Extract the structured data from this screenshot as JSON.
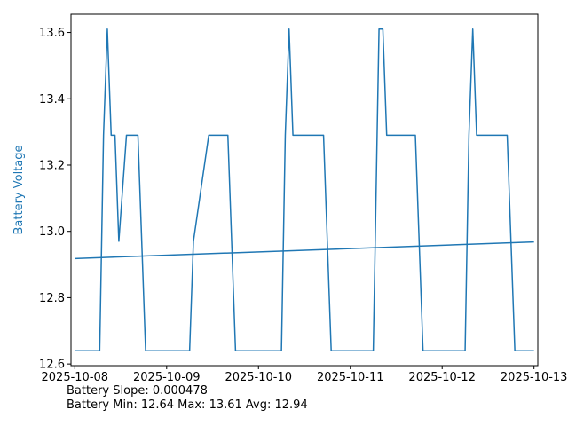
{
  "chart_data": {
    "type": "line",
    "title": "",
    "xlabel": "",
    "ylabel": "Battery Voltage",
    "ylim": [
      12.595,
      13.655
    ],
    "xlim": [
      "2025-10-07 23:00",
      "2025-10-13 01:00"
    ],
    "yticks": [
      "12.6",
      "12.8",
      "13.0",
      "13.2",
      "13.4",
      "13.6"
    ],
    "xticks": [
      "2025-10-08",
      "2025-10-09",
      "2025-10-10",
      "2025-10-11",
      "2025-10-12",
      "2025-10-13"
    ],
    "grid": false,
    "line_color": "#1f77b4",
    "series": [
      {
        "values": [
          [
            "2025-10-08 00:00",
            12.64
          ],
          [
            "2025-10-08 06:30",
            12.64
          ],
          [
            "2025-10-08 07:30",
            13.29
          ],
          [
            "2025-10-08 08:30",
            13.61
          ],
          [
            "2025-10-08 09:30",
            13.29
          ],
          [
            "2025-10-08 10:30",
            13.29
          ],
          [
            "2025-10-08 11:30",
            12.97
          ],
          [
            "2025-10-08 13:30",
            13.29
          ],
          [
            "2025-10-08 16:30",
            13.29
          ],
          [
            "2025-10-08 18:30",
            12.64
          ],
          [
            "2025-10-09 06:00",
            12.64
          ],
          [
            "2025-10-09 07:00",
            12.97
          ],
          [
            "2025-10-09 11:00",
            13.29
          ],
          [
            "2025-10-09 16:00",
            13.29
          ],
          [
            "2025-10-09 18:00",
            12.64
          ],
          [
            "2025-10-10 06:00",
            12.64
          ],
          [
            "2025-10-10 07:00",
            13.29
          ],
          [
            "2025-10-10 08:00",
            13.61
          ],
          [
            "2025-10-10 09:00",
            13.29
          ],
          [
            "2025-10-10 17:00",
            13.29
          ],
          [
            "2025-10-10 19:00",
            12.64
          ],
          [
            "2025-10-11 06:00",
            12.64
          ],
          [
            "2025-10-11 07:00",
            13.29
          ],
          [
            "2025-10-11 07:30",
            13.61
          ],
          [
            "2025-10-11 08:30",
            13.61
          ],
          [
            "2025-10-11 09:30",
            13.29
          ],
          [
            "2025-10-11 17:00",
            13.29
          ],
          [
            "2025-10-11 19:00",
            12.64
          ],
          [
            "2025-10-12 06:00",
            12.64
          ],
          [
            "2025-10-12 07:00",
            13.29
          ],
          [
            "2025-10-12 08:00",
            13.61
          ],
          [
            "2025-10-12 09:00",
            13.29
          ],
          [
            "2025-10-12 17:00",
            13.29
          ],
          [
            "2025-10-12 19:00",
            12.64
          ],
          [
            "2025-10-13 00:00",
            12.64
          ]
        ]
      },
      {
        "values": [
          [
            "2025-10-08 00:00",
            12.918
          ],
          [
            "2025-10-13 00:00",
            12.968
          ]
        ]
      }
    ]
  },
  "stats": {
    "line1": "Battery Slope: 0.000478",
    "line2": "Battery Min: 12.64 Max: 13.61 Avg: 12.94"
  }
}
